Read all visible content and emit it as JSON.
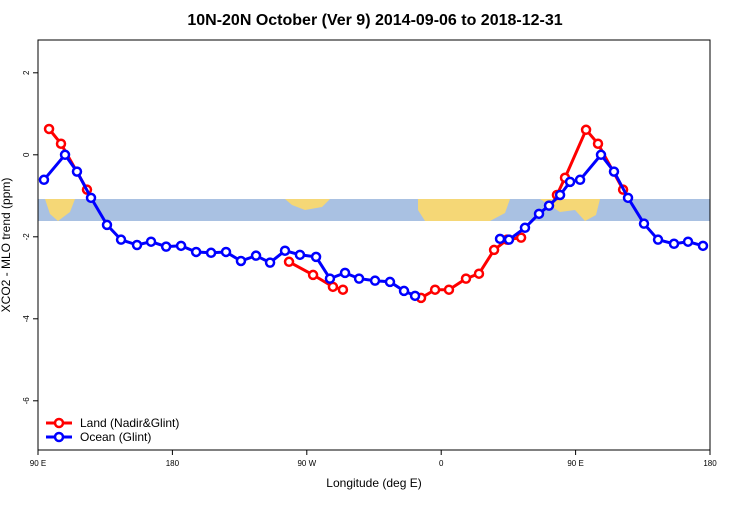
{
  "chart_data": {
    "type": "line",
    "title": "10N-20N October (Ver 9)   2014-09-06 to 2018-12-31",
    "x_label": "Longitude (deg E)",
    "y_label": "XCO2 - MLO trend (ppm)",
    "xlim": [
      90,
      540
    ],
    "ylim": [
      -7.2,
      2.8
    ],
    "xticks": [
      {
        "value": 90,
        "label": "90 E"
      },
      {
        "value": 180,
        "label": "180"
      },
      {
        "value": 270,
        "label": "90 W"
      },
      {
        "value": 360,
        "label": "0"
      },
      {
        "value": 450,
        "label": "90 E"
      },
      {
        "value": 540,
        "label": "180"
      }
    ],
    "yticks": [
      -6,
      -4,
      -2,
      0,
      2
    ],
    "legend": "bottom-left",
    "series": [
      {
        "name": "Land (Nadir&Glint)",
        "color": "#ff0000",
        "x": [
          97.4,
          105.4,
          122.8,
          null,
          258.1,
          274.2,
          287.5,
          294.2,
          null,
          346.5,
          355.9,
          365.2,
          376.6,
          385.3,
          395.4,
          404.1,
          413.5,
          null,
          437.5,
          442.9,
          457.0,
          465.0,
          481.8
        ],
        "values": [
          0.63,
          0.27,
          -0.85,
          null,
          -2.61,
          -2.93,
          -3.22,
          -3.29,
          null,
          -3.49,
          -3.29,
          -3.29,
          -3.02,
          -2.9,
          -2.32,
          -2.07,
          -2.02,
          null,
          -0.98,
          -0.56,
          0.61,
          0.27,
          -0.85
        ]
      },
      {
        "name": "Ocean (Glint)",
        "color": "#0000ff",
        "x": [
          94.0,
          108.1,
          116.1,
          125.5,
          136.2,
          145.6,
          156.3,
          165.7,
          175.8,
          185.8,
          195.9,
          205.9,
          215.9,
          225.9,
          236.0,
          245.4,
          255.4,
          265.4,
          276.2,
          285.5,
          295.6,
          305.0,
          315.7,
          325.7,
          335.1,
          342.5,
          null,
          399.4,
          405.4,
          416.1,
          425.5,
          432.2,
          439.6,
          446.3,
          453.0,
          467.0,
          475.7,
          485.1,
          495.8,
          505.2,
          515.9,
          525.3,
          535.3
        ],
        "values": [
          -0.61,
          0,
          -0.41,
          -1.05,
          -1.71,
          -2.07,
          -2.2,
          -2.12,
          -2.24,
          -2.22,
          -2.37,
          -2.39,
          -2.37,
          -2.59,
          -2.46,
          -2.63,
          -2.34,
          -2.44,
          -2.49,
          -3.02,
          -2.88,
          -3.02,
          -3.07,
          -3.1,
          -3.32,
          -3.44,
          null,
          -2.05,
          -2.07,
          -1.78,
          -1.44,
          -1.24,
          -0.98,
          -0.66,
          -0.61,
          0,
          -0.41,
          -1.05,
          -1.68,
          -2.07,
          -2.17,
          -2.12,
          -2.22
        ]
      }
    ]
  }
}
